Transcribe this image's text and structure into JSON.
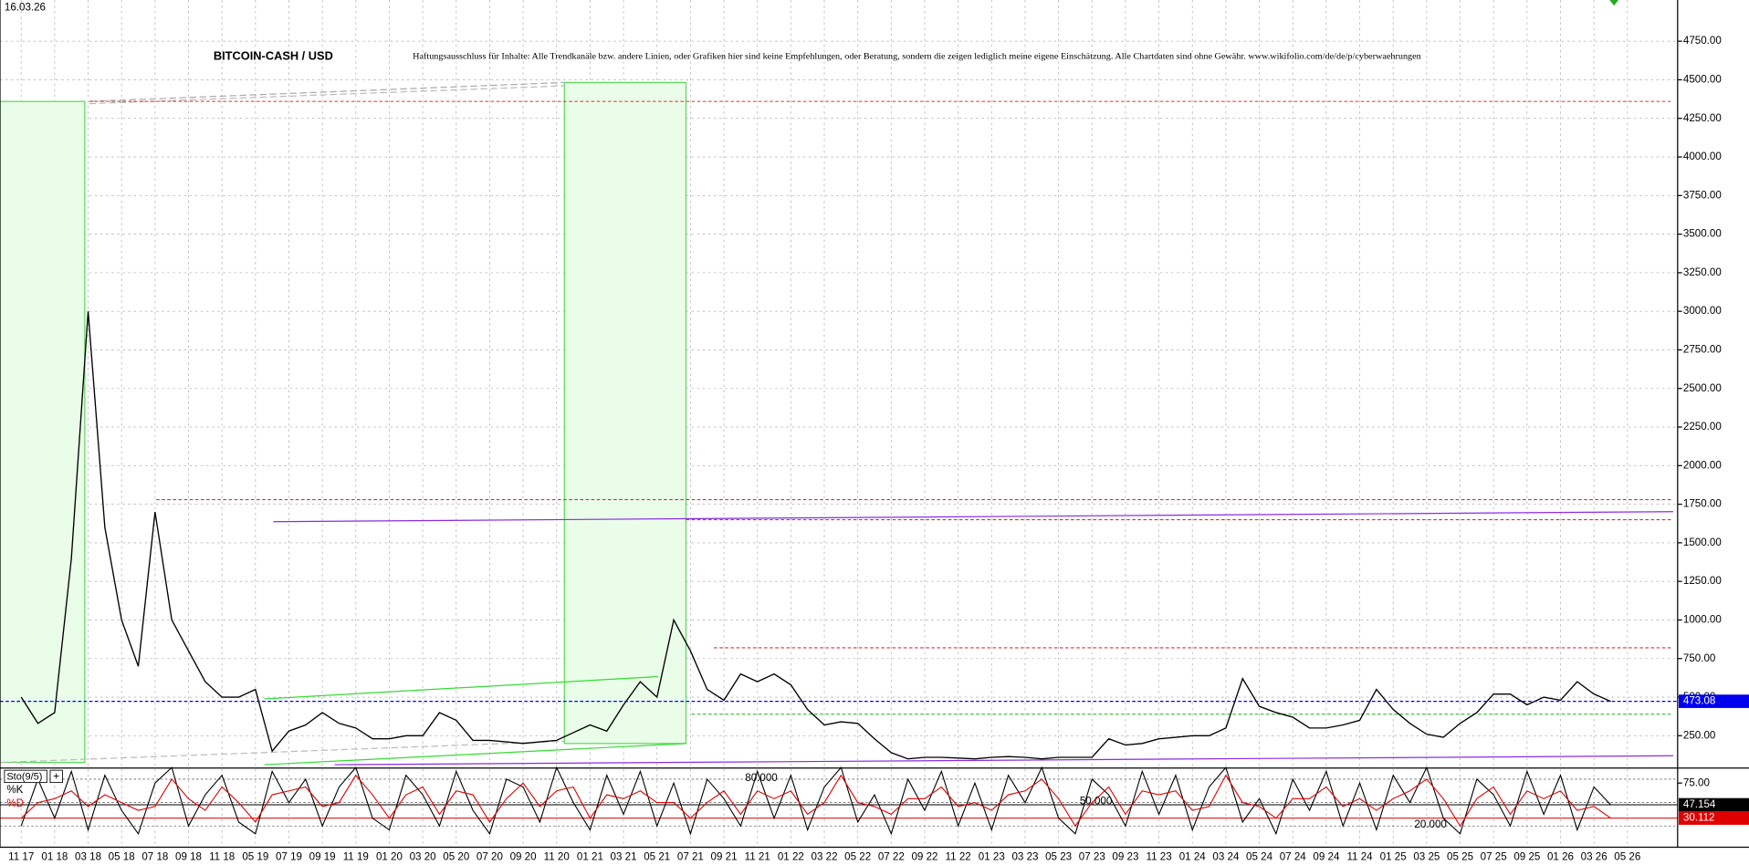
{
  "date": "16.03.26",
  "chart_data": [
    {
      "type": "line",
      "title": "BITCOIN-CASH / USD",
      "subtitle": "Haftungsausschluss für Inhalte: Alle Trendkanäle bzw. andere Linien, oder Grafiken hier sind keine Empfehlungen, oder Beratung, sondern die zeigen lediglich meine eigene Einschätzung. Alle Chartdaten sind ohne Gewähr. www.wikifolio.com/de/de/p/cyberwaehrungen",
      "categories": [
        "11 17",
        null,
        "01 18",
        null,
        "03 18",
        null,
        "05 18",
        null,
        "07 18",
        null,
        "09 18",
        null,
        "11 18",
        null,
        "05 19",
        null,
        "07 19",
        null,
        "09 19",
        null,
        "11 19",
        null,
        "01 20",
        null,
        "03 20",
        null,
        "05 20",
        null,
        "07 20",
        null,
        "09 20",
        null,
        "11 20",
        null,
        "01 21",
        null,
        "03 21",
        null,
        "05 21",
        null,
        "07 21",
        null,
        "09 21",
        null,
        "11 21",
        null,
        "01 22",
        null,
        "03 22",
        null,
        "05 22",
        null,
        "07 22",
        null,
        "09 22",
        null,
        "11 22",
        null,
        "01 23",
        null,
        "03 23",
        null,
        "05 23",
        null,
        "07 23",
        null,
        "09 23",
        null,
        "11 23",
        null,
        "01 24",
        null,
        "03 24",
        null,
        "05 24",
        null,
        "07 24",
        null,
        "09 24",
        null,
        "11 24",
        null,
        "01 25",
        null,
        "03 25",
        null,
        "05 25",
        null,
        "07 25",
        null,
        "09 25",
        null,
        "01 26",
        null,
        "03 26",
        null,
        "05 26",
        null
      ],
      "values": [
        500,
        330,
        400,
        1400,
        3000,
        1600,
        1000,
        700,
        1700,
        1000,
        800,
        600,
        500,
        500,
        550,
        150,
        280,
        320,
        400,
        330,
        300,
        230,
        230,
        250,
        250,
        400,
        350,
        220,
        220,
        210,
        200,
        210,
        220,
        270,
        320,
        280,
        450,
        600,
        500,
        1000,
        800,
        550,
        480,
        650,
        600,
        650,
        580,
        420,
        320,
        340,
        330,
        230,
        140,
        100,
        110,
        110,
        105,
        100,
        110,
        115,
        110,
        100,
        110,
        110,
        110,
        230,
        190,
        200,
        230,
        240,
        250,
        250,
        300,
        620,
        440,
        400,
        370,
        300,
        300,
        320,
        350,
        550,
        420,
        330,
        260,
        240,
        330,
        400,
        520,
        520,
        450,
        500,
        480,
        600,
        520,
        473.08,
        null,
        null
      ],
      "color": "#000000",
      "ylim": [
        48,
        5017
      ],
      "yticks": [
        {
          "value": 250,
          "label": "250.00"
        },
        {
          "value": 500,
          "label": "500.00"
        },
        {
          "value": 750,
          "label": "750.00"
        },
        {
          "value": 1000,
          "label": "1000.00"
        },
        {
          "value": 1250,
          "label": "1250.00"
        },
        {
          "value": 1500,
          "label": "1500.00"
        },
        {
          "value": 1750,
          "label": "1750.00"
        },
        {
          "value": 2000,
          "label": "2000.00"
        },
        {
          "value": 2250,
          "label": "2250.00"
        },
        {
          "value": 2500,
          "label": "2500.00"
        },
        {
          "value": 2750,
          "label": "2750.00"
        },
        {
          "value": 3000,
          "label": "3000.00"
        },
        {
          "value": 3250,
          "label": "3250.00"
        },
        {
          "value": 3500,
          "label": "3500.00"
        },
        {
          "value": 3750,
          "label": "3750.00"
        },
        {
          "value": 4000,
          "label": "4000.00"
        },
        {
          "value": 4250,
          "label": "4250.00"
        },
        {
          "value": 4500,
          "label": "4500.00"
        },
        {
          "value": 4750,
          "label": "4750.00"
        }
      ],
      "grid": true,
      "hlines": [
        {
          "value": 4360,
          "color": "#e03030"
        },
        {
          "value": 1780,
          "color": "#e03030"
        },
        {
          "value": 1650,
          "color": "#e03030"
        },
        {
          "value": 820,
          "color": "#e03030"
        },
        {
          "value": 390,
          "color": "#33bb33"
        }
      ],
      "last_color": "#0000ee"
    },
    {
      "type": "line",
      "title": "Sto(9/5)",
      "series": [
        {
          "name": "%K",
          "color": "#000000",
          "values": [
            20,
            80,
            30,
            90,
            15,
            85,
            40,
            10,
            75,
            95,
            20,
            60,
            85,
            25,
            10,
            90,
            50,
            80,
            20,
            70,
            95,
            30,
            15,
            85,
            60,
            20,
            90,
            40,
            10,
            80,
            70,
            25,
            95,
            50,
            15,
            85,
            35,
            90,
            20,
            75,
            10,
            80,
            55,
            20,
            90,
            30,
            85,
            15,
            70,
            95,
            25,
            60,
            10,
            80,
            40,
            90,
            20,
            75,
            15,
            85,
            50,
            95,
            30,
            10,
            80,
            60,
            20,
            90,
            35,
            85,
            15,
            70,
            95,
            25,
            55,
            10,
            80,
            40,
            90,
            20,
            75,
            15,
            85,
            50,
            95,
            30,
            10,
            80,
            60,
            20,
            90,
            35,
            85,
            15,
            70,
            47.154,
            null,
            null
          ]
        },
        {
          "name": "%D",
          "color": "#e00000",
          "values": [
            30,
            50,
            55,
            65,
            45,
            60,
            50,
            40,
            45,
            80,
            55,
            40,
            70,
            50,
            25,
            60,
            65,
            70,
            45,
            50,
            85,
            60,
            30,
            60,
            70,
            35,
            65,
            60,
            25,
            55,
            75,
            45,
            65,
            70,
            30,
            60,
            55,
            65,
            50,
            50,
            30,
            50,
            65,
            35,
            65,
            55,
            65,
            35,
            50,
            85,
            50,
            45,
            35,
            55,
            55,
            70,
            45,
            50,
            40,
            60,
            65,
            80,
            55,
            20,
            50,
            70,
            35,
            65,
            60,
            65,
            40,
            45,
            85,
            50,
            45,
            30,
            55,
            55,
            70,
            45,
            55,
            40,
            55,
            65,
            80,
            55,
            20,
            55,
            70,
            35,
            65,
            55,
            65,
            40,
            45,
            30.112,
            null,
            null
          ]
        }
      ],
      "ylim": [
        0,
        100
      ],
      "yticks": [
        {
          "value": 75,
          "label": "75.00"
        }
      ],
      "levels": [
        {
          "value": 80,
          "label": "80.000"
        },
        {
          "value": 50,
          "label": "50.000"
        },
        {
          "value": 20,
          "label": "20.000"
        }
      ]
    }
  ]
}
